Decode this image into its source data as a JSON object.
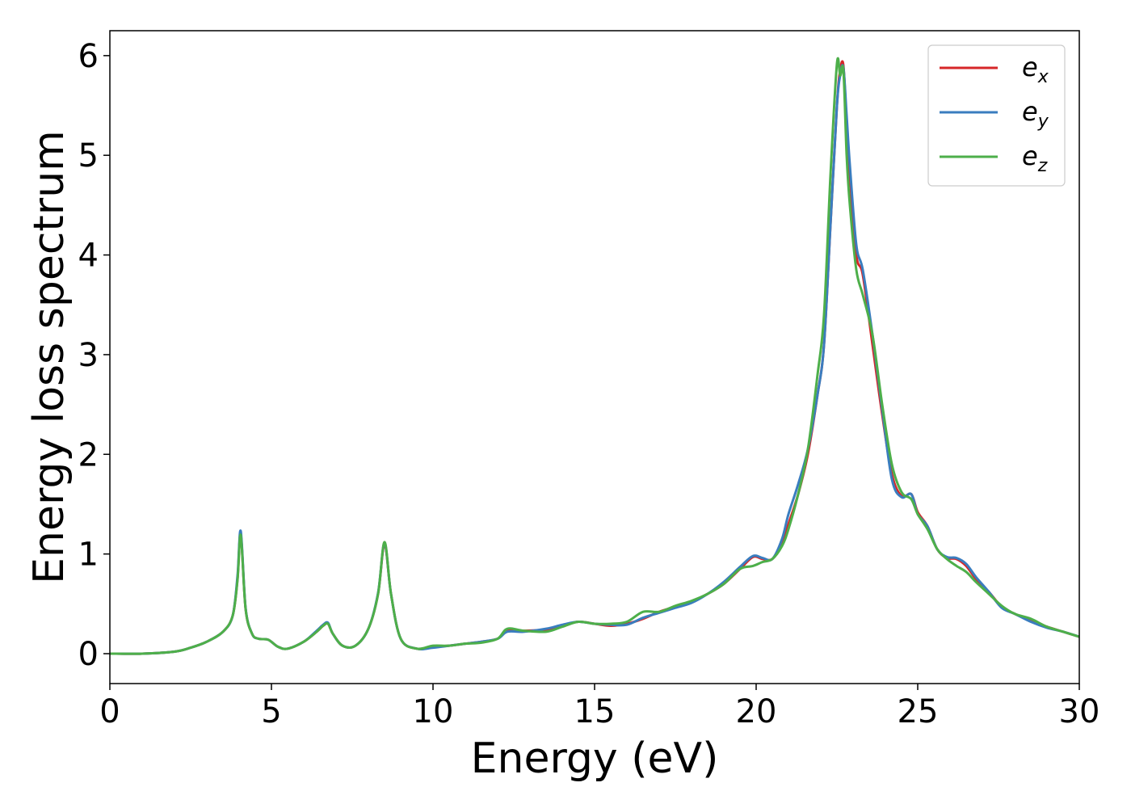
{
  "chart_data": {
    "type": "line",
    "title": "",
    "xlabel": "Energy (eV)",
    "ylabel": "Energy loss spectrum",
    "xlim": [
      0,
      30
    ],
    "ylim": [
      -0.3,
      6.25
    ],
    "xticks": [
      0,
      5,
      10,
      15,
      20,
      25,
      30
    ],
    "yticks": [
      0,
      1,
      2,
      3,
      4,
      5,
      6
    ],
    "grid": false,
    "legend_position": "top-right",
    "series": [
      {
        "name": "e",
        "subscript": "x",
        "color": "#d62728",
        "x": [
          0,
          1,
          2,
          2.5,
          3,
          3.5,
          3.8,
          3.95,
          4.05,
          4.2,
          4.4,
          4.6,
          4.9,
          5.2,
          5.5,
          6,
          6.4,
          6.6,
          6.75,
          6.9,
          7.2,
          7.6,
          8,
          8.3,
          8.5,
          8.7,
          9,
          9.5,
          10,
          10.5,
          11,
          11.5,
          12,
          12.3,
          12.8,
          13.5,
          14,
          14.5,
          15,
          15.5,
          16,
          16.5,
          17,
          17.5,
          18,
          18.5,
          19,
          19.5,
          19.9,
          20.2,
          20.5,
          20.8,
          21,
          21.3,
          21.6,
          21.9,
          22.1,
          22.3,
          22.5,
          22.6,
          22.7,
          22.8,
          22.9,
          23.1,
          23.3,
          23.6,
          23.9,
          24.2,
          24.5,
          24.8,
          25,
          25.3,
          25.6,
          25.9,
          26.2,
          26.5,
          26.8,
          27.2,
          27.6,
          28,
          28.5,
          29,
          29.5,
          30
        ],
        "y": [
          0,
          0,
          0.02,
          0.06,
          0.12,
          0.22,
          0.38,
          0.75,
          1.2,
          0.45,
          0.2,
          0.15,
          0.14,
          0.07,
          0.05,
          0.12,
          0.22,
          0.28,
          0.3,
          0.2,
          0.08,
          0.08,
          0.25,
          0.6,
          1.1,
          0.6,
          0.15,
          0.05,
          0.07,
          0.08,
          0.1,
          0.12,
          0.15,
          0.23,
          0.23,
          0.24,
          0.28,
          0.32,
          0.3,
          0.28,
          0.3,
          0.35,
          0.42,
          0.47,
          0.52,
          0.6,
          0.7,
          0.85,
          0.97,
          0.95,
          0.95,
          1.1,
          1.3,
          1.6,
          2.0,
          2.6,
          3.1,
          4.3,
          5.5,
          5.85,
          5.9,
          5.3,
          4.8,
          4.0,
          3.8,
          3.1,
          2.4,
          1.8,
          1.58,
          1.6,
          1.42,
          1.28,
          1.05,
          0.96,
          0.95,
          0.88,
          0.75,
          0.62,
          0.47,
          0.4,
          0.33,
          0.27,
          0.22,
          0.17
        ]
      },
      {
        "name": "e",
        "subscript": "y",
        "color": "#3a7dbf",
        "x": [
          0,
          1,
          2,
          2.5,
          3,
          3.5,
          3.8,
          3.95,
          4.05,
          4.2,
          4.4,
          4.6,
          4.9,
          5.2,
          5.5,
          6,
          6.4,
          6.6,
          6.75,
          6.9,
          7.2,
          7.6,
          8,
          8.3,
          8.5,
          8.7,
          9,
          9.5,
          10,
          10.5,
          11,
          11.5,
          12,
          12.3,
          12.8,
          13.5,
          14,
          14.5,
          15,
          15.5,
          16,
          16.5,
          17,
          17.5,
          18,
          18.5,
          19,
          19.5,
          19.9,
          20.2,
          20.5,
          20.8,
          21,
          21.3,
          21.6,
          21.9,
          22.1,
          22.3,
          22.5,
          22.6,
          22.7,
          22.8,
          22.9,
          23.1,
          23.3,
          23.6,
          23.9,
          24.2,
          24.5,
          24.8,
          25,
          25.3,
          25.6,
          25.9,
          26.2,
          26.5,
          26.8,
          27.2,
          27.6,
          28,
          28.5,
          29,
          29.5,
          30
        ],
        "y": [
          0,
          0,
          0.02,
          0.06,
          0.12,
          0.22,
          0.38,
          0.78,
          1.23,
          0.46,
          0.2,
          0.15,
          0.14,
          0.07,
          0.05,
          0.12,
          0.23,
          0.29,
          0.31,
          0.2,
          0.08,
          0.08,
          0.25,
          0.61,
          1.11,
          0.6,
          0.15,
          0.05,
          0.06,
          0.08,
          0.1,
          0.12,
          0.15,
          0.22,
          0.22,
          0.25,
          0.29,
          0.32,
          0.3,
          0.29,
          0.29,
          0.36,
          0.41,
          0.46,
          0.51,
          0.6,
          0.72,
          0.87,
          0.98,
          0.96,
          0.95,
          1.15,
          1.4,
          1.7,
          2.05,
          2.6,
          3.1,
          4.3,
          5.5,
          5.8,
          5.88,
          5.4,
          4.9,
          4.1,
          3.85,
          3.2,
          2.45,
          1.75,
          1.57,
          1.6,
          1.4,
          1.28,
          1.05,
          0.97,
          0.96,
          0.9,
          0.77,
          0.62,
          0.46,
          0.4,
          0.32,
          0.26,
          0.22,
          0.17
        ]
      },
      {
        "name": "e",
        "subscript": "z",
        "color": "#4daf4a",
        "x": [
          0,
          1,
          2,
          2.5,
          3,
          3.5,
          3.8,
          3.95,
          4.05,
          4.2,
          4.4,
          4.6,
          4.9,
          5.2,
          5.5,
          6,
          6.4,
          6.6,
          6.75,
          6.9,
          7.2,
          7.6,
          8,
          8.3,
          8.5,
          8.7,
          9,
          9.5,
          10,
          10.5,
          11,
          11.5,
          12,
          12.3,
          12.8,
          13.5,
          14,
          14.5,
          15,
          15.5,
          16,
          16.5,
          17,
          17.5,
          18,
          18.5,
          19,
          19.5,
          19.9,
          20.2,
          20.5,
          20.8,
          21,
          21.3,
          21.6,
          21.9,
          22.1,
          22.3,
          22.5,
          22.6,
          22.7,
          22.8,
          22.9,
          23.1,
          23.3,
          23.6,
          23.9,
          24.2,
          24.5,
          24.8,
          25,
          25.3,
          25.6,
          25.9,
          26.2,
          26.5,
          26.8,
          27.2,
          27.6,
          28,
          28.5,
          29,
          29.5,
          30
        ],
        "y": [
          0,
          0,
          0.02,
          0.06,
          0.12,
          0.22,
          0.38,
          0.74,
          1.19,
          0.45,
          0.2,
          0.15,
          0.14,
          0.07,
          0.05,
          0.12,
          0.22,
          0.28,
          0.3,
          0.2,
          0.08,
          0.08,
          0.25,
          0.6,
          1.12,
          0.6,
          0.15,
          0.05,
          0.08,
          0.08,
          0.1,
          0.11,
          0.15,
          0.25,
          0.23,
          0.22,
          0.27,
          0.32,
          0.3,
          0.3,
          0.32,
          0.42,
          0.42,
          0.48,
          0.53,
          0.6,
          0.7,
          0.85,
          0.88,
          0.92,
          0.95,
          1.08,
          1.25,
          1.6,
          2.05,
          2.8,
          3.4,
          4.8,
          5.92,
          5.8,
          5.85,
          5.0,
          4.5,
          3.85,
          3.6,
          3.2,
          2.5,
          1.9,
          1.62,
          1.55,
          1.4,
          1.25,
          1.05,
          0.95,
          0.88,
          0.82,
          0.72,
          0.6,
          0.48,
          0.4,
          0.35,
          0.27,
          0.22,
          0.17
        ]
      }
    ]
  }
}
